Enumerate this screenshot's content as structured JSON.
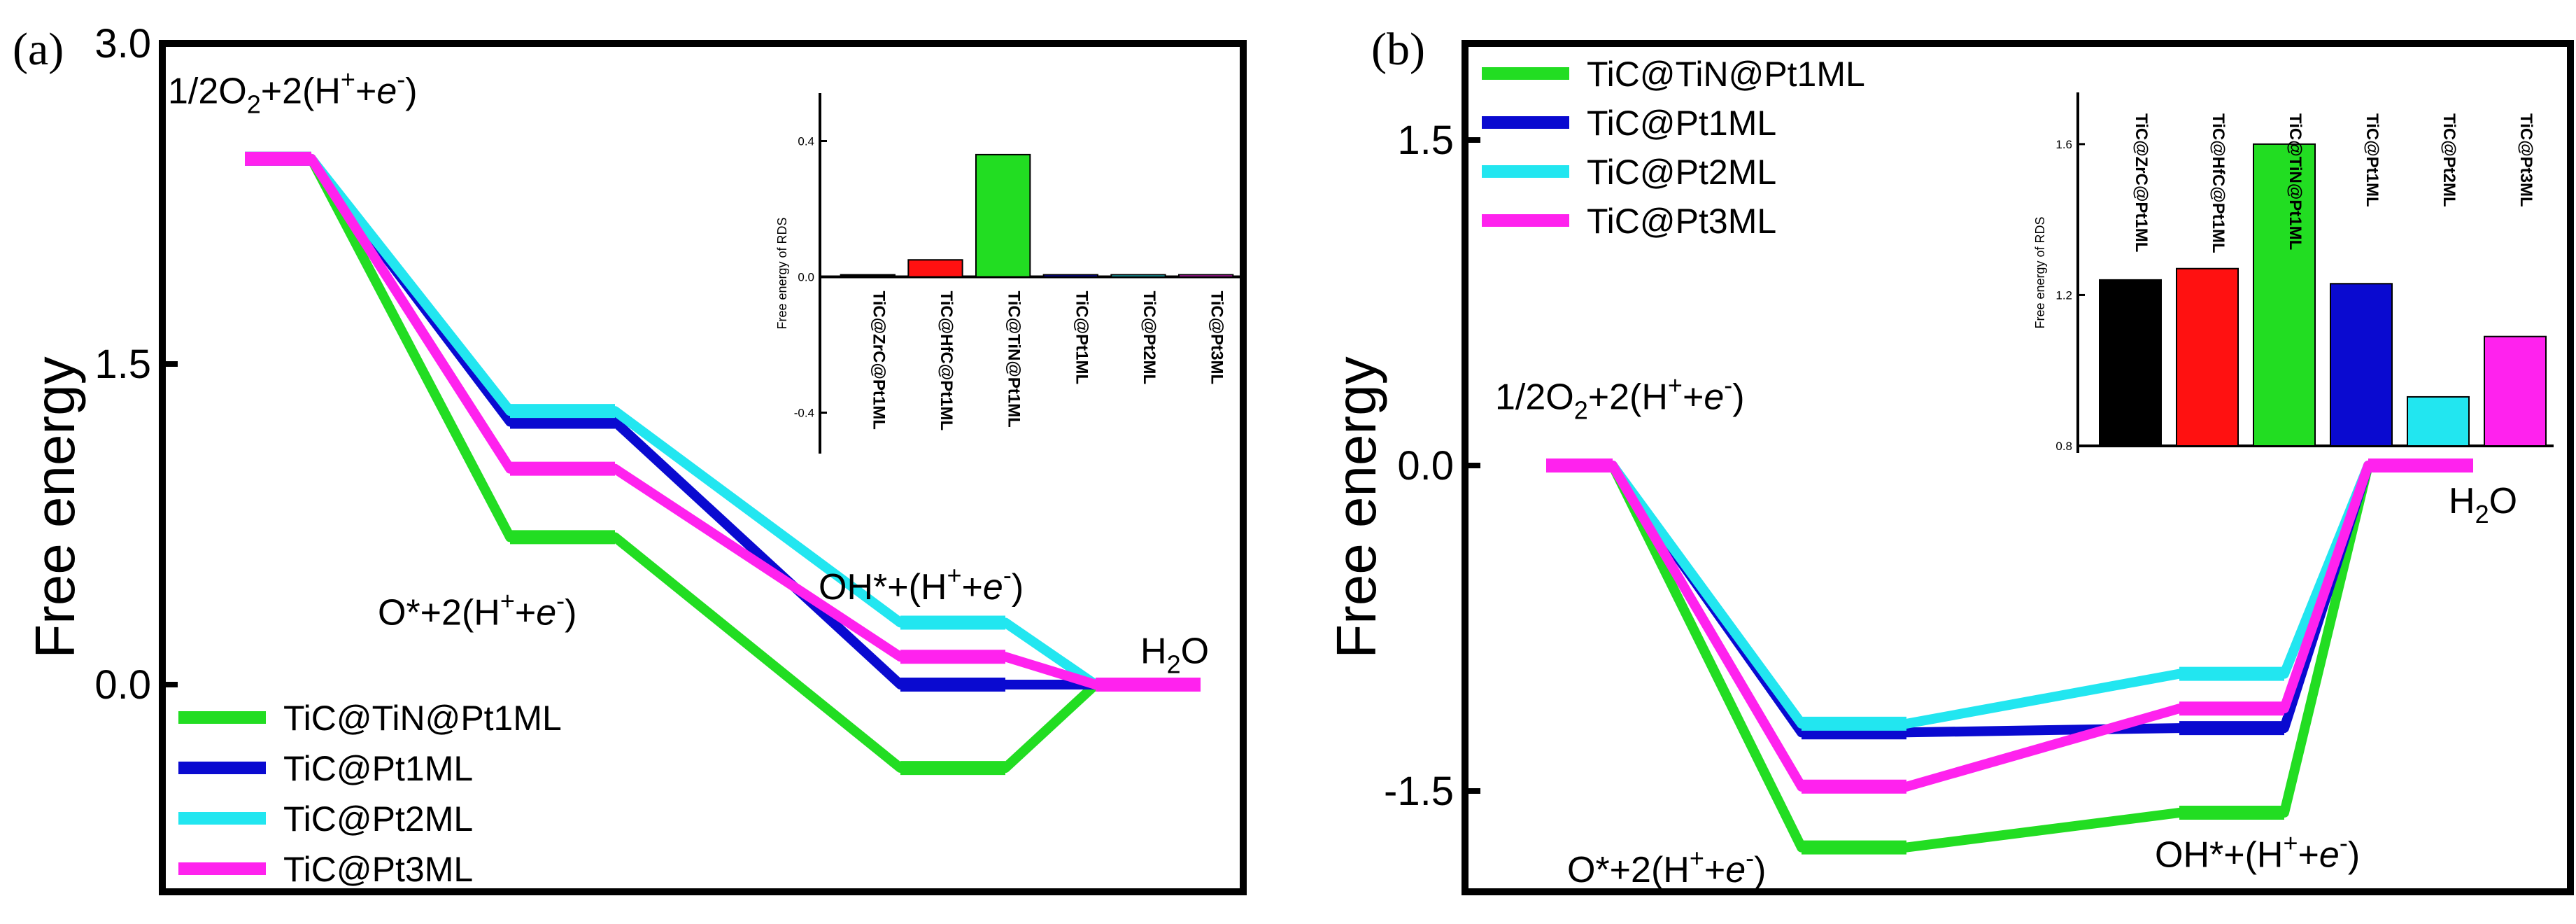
{
  "chart_data": [
    {
      "panel_label": "(a)",
      "type": "line",
      "ylabel": "Free energy",
      "ylim": [
        -1.0,
        3.0
      ],
      "yticks": [
        "3.0",
        "1.5",
        "0.0"
      ],
      "ytick_values": [
        3.0,
        1.5,
        0.0
      ],
      "x_steps": 5,
      "state_labels": [
        {
          "step": 0,
          "y": 2.72,
          "prefix": "1/2O",
          "sub": "2",
          "main": "+2(H",
          "sup": "+",
          "tail1": "+",
          "italic": "e",
          "sup2": "-",
          "end": ")"
        },
        {
          "step": 1.6,
          "y": 0.28,
          "prefix": "O*+2(H",
          "sub": "",
          "main": "",
          "sup": "+",
          "tail1": "+",
          "italic": "e",
          "sup2": "-",
          "end": ")"
        },
        {
          "step": 3.6,
          "y": 0.4,
          "prefix": "OH*+(H",
          "sub": "",
          "main": "",
          "sup": "+",
          "tail1": "+",
          "italic": "e",
          "sup2": "-",
          "end": ")"
        },
        {
          "step": 4.35,
          "y": 0.1,
          "prefix": "H",
          "sub": "2",
          "main": "O",
          "sup": "",
          "tail1": "",
          "italic": "",
          "sup2": "",
          "end": ""
        }
      ],
      "legend_position": "bottom-left",
      "series": [
        {
          "name": "TiC@TiN@Pt1ML",
          "color": "#22dd22",
          "values": [
            2.46,
            0.69,
            -0.39,
            0.0
          ]
        },
        {
          "name": "TiC@Pt1ML",
          "color": "#0a0ad0",
          "values": [
            2.46,
            1.23,
            0.0,
            0.0
          ]
        },
        {
          "name": "TiC@Pt2ML",
          "color": "#22e6f0",
          "values": [
            2.46,
            1.28,
            0.29,
            0.0
          ]
        },
        {
          "name": "TiC@Pt3ML",
          "color": "#ff22ee",
          "values": [
            2.46,
            1.01,
            0.13,
            0.0
          ]
        }
      ],
      "inset": {
        "type": "bar",
        "ylabel": "Free energy of RDS",
        "ylim": [
          -0.5,
          0.5
        ],
        "yticks": [
          "0.4",
          "0.0",
          "-0.4"
        ],
        "ytick_values": [
          0.4,
          0.0,
          -0.4
        ],
        "categories": [
          "TiC@ZrC@Pt1ML",
          "TiC@HfC@Pt1ML",
          "TiC@TiN@Pt1ML",
          "TiC@Pt1ML",
          "TiC@Pt2ML",
          "TiC@Pt3ML"
        ],
        "values": [
          0.0,
          0.05,
          0.36,
          0.0,
          0.0,
          0.0
        ],
        "colors": [
          "#000000",
          "#ff1111",
          "#22dd22",
          "#0a0ad0",
          "#22e6f0",
          "#ff22ee"
        ]
      }
    },
    {
      "panel_label": "(b)",
      "type": "line",
      "ylabel": "Free energy",
      "ylim": [
        -2.0,
        2.1
      ],
      "yticks": [
        "1.5",
        "0.0",
        "-1.5"
      ],
      "ytick_values": [
        1.5,
        0.0,
        -1.5
      ],
      "x_steps": 5,
      "state_labels": [
        {
          "step": 0,
          "y": 0.26,
          "prefix": "1/2O",
          "sub": "2",
          "main": "+2(H",
          "sup": "+",
          "tail1": "+",
          "italic": "e",
          "sup2": "-",
          "end": ")"
        },
        {
          "step": 1.4,
          "y": -1.92,
          "prefix": "O*+2(H",
          "sub": "",
          "main": "",
          "sup": "+",
          "tail1": "+",
          "italic": "e",
          "sup2": "-",
          "end": ")"
        },
        {
          "step": 3.45,
          "y": -1.85,
          "prefix": "OH*+(H",
          "sub": "",
          "main": "",
          "sup": "+",
          "tail1": "+",
          "italic": "e",
          "sup2": "-",
          "end": ")"
        },
        {
          "step": 4.25,
          "y": -0.22,
          "prefix": "H",
          "sub": "2",
          "main": "O",
          "sup": "",
          "tail1": "",
          "italic": "",
          "sup2": "",
          "end": ""
        }
      ],
      "legend_position": "top-left",
      "series": [
        {
          "name": "TiC@TiN@Pt1ML",
          "color": "#22dd22",
          "values": [
            0.0,
            -1.76,
            -1.6,
            0.0
          ]
        },
        {
          "name": "TiC@Pt1ML",
          "color": "#0a0ad0",
          "values": [
            0.0,
            -1.23,
            -1.21,
            0.0
          ]
        },
        {
          "name": "TiC@Pt2ML",
          "color": "#22e6f0",
          "values": [
            0.0,
            -1.19,
            -0.96,
            0.0
          ]
        },
        {
          "name": "TiC@Pt3ML",
          "color": "#ff22ee",
          "values": [
            0.0,
            -1.48,
            -1.12,
            0.0
          ]
        }
      ],
      "inset": {
        "type": "bar",
        "ylabel": "Free energy of RDS",
        "ylim": [
          0.8,
          1.7
        ],
        "yticks": [
          "1.6",
          "1.2",
          "0.8"
        ],
        "ytick_values": [
          1.6,
          1.2,
          0.8
        ],
        "categories": [
          "TiC@ZrC@Pt1ML",
          "TiC@HfC@Pt1ML",
          "TiC@TiN@Pt1ML",
          "TiC@Pt1ML",
          "TiC@Pt2ML",
          "TiC@Pt3ML"
        ],
        "values": [
          1.24,
          1.27,
          1.6,
          1.23,
          0.93,
          1.09
        ],
        "colors": [
          "#000000",
          "#ff1111",
          "#22dd22",
          "#0a0ad0",
          "#22e6f0",
          "#ff22ee"
        ]
      }
    }
  ]
}
